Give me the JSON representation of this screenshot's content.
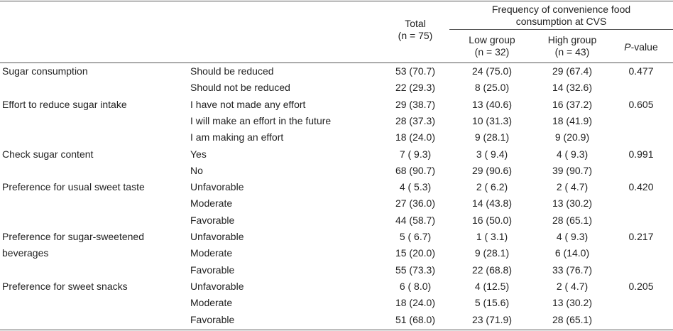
{
  "headers": {
    "total_line1": "Total",
    "total_line2": "(n = 75)",
    "freq_line1": "Frequency of convenience food",
    "freq_line2": "consumption at CVS",
    "low_line1": "Low group",
    "low_line2": "(n = 32)",
    "high_line1": "High group",
    "high_line2": "(n = 43)",
    "p_italic": "P",
    "p_rest": "-value"
  },
  "rows": [
    {
      "variable": "Sugar consumption",
      "category": "Should be reduced",
      "total": "53 (70.7)",
      "low": "24 (75.0)",
      "high": "29 (67.4)",
      "p": "0.477"
    },
    {
      "variable": "",
      "category": "Should not be reduced",
      "total": "22 (29.3)",
      "low": "8 (25.0)",
      "high": "14 (32.6)",
      "p": ""
    },
    {
      "variable": "Effort to reduce sugar intake",
      "category": "I have not made any effort",
      "total": "29 (38.7)",
      "low": "13 (40.6)",
      "high": "16 (37.2)",
      "p": "0.605"
    },
    {
      "variable": "",
      "category": "I will make an effort in the future",
      "total": "28 (37.3)",
      "low": "10 (31.3)",
      "high": "18 (41.9)",
      "p": ""
    },
    {
      "variable": "",
      "category": "I am making an effort",
      "total": "18 (24.0)",
      "low": "9 (28.1)",
      "high": "9 (20.9)",
      "p": ""
    },
    {
      "variable": "Check sugar content",
      "category": "Yes",
      "total": "7 ( 9.3)",
      "low": "3 ( 9.4)",
      "high": "4 ( 9.3)",
      "p": "0.991"
    },
    {
      "variable": "",
      "category": "No",
      "total": "68 (90.7)",
      "low": "29 (90.6)",
      "high": "39 (90.7)",
      "p": ""
    },
    {
      "variable": "Preference for usual sweet taste",
      "category": "Unfavorable",
      "total": "4 ( 5.3)",
      "low": "2 ( 6.2)",
      "high": "2 ( 4.7)",
      "p": "0.420"
    },
    {
      "variable": "",
      "category": "Moderate",
      "total": "27 (36.0)",
      "low": "14 (43.8)",
      "high": "13 (30.2)",
      "p": ""
    },
    {
      "variable": "",
      "category": "Favorable",
      "total": "44 (58.7)",
      "low": "16 (50.0)",
      "high": "28 (65.1)",
      "p": ""
    },
    {
      "variable": "Preference for sugar-sweetened",
      "category": "Unfavorable",
      "total": "5 ( 6.7)",
      "low": "1 ( 3.1)",
      "high": "4 ( 9.3)",
      "p": "0.217"
    },
    {
      "variable": "beverages",
      "category": "Moderate",
      "total": "15 (20.0)",
      "low": "9 (28.1)",
      "high": "6 (14.0)",
      "p": ""
    },
    {
      "variable": "",
      "category": "Favorable",
      "total": "55 (73.3)",
      "low": "22 (68.8)",
      "high": "33 (76.7)",
      "p": ""
    },
    {
      "variable": "Preference for sweet snacks",
      "category": "Unfavorable",
      "total": "6 ( 8.0)",
      "low": "4 (12.5)",
      "high": "2 ( 4.7)",
      "p": "0.205"
    },
    {
      "variable": "",
      "category": "Moderate",
      "total": "18 (24.0)",
      "low": "5 (15.6)",
      "high": "13 (30.2)",
      "p": ""
    },
    {
      "variable": "",
      "category": "Favorable",
      "total": "51 (68.0)",
      "low": "23 (71.9)",
      "high": "28 (65.1)",
      "p": ""
    }
  ]
}
